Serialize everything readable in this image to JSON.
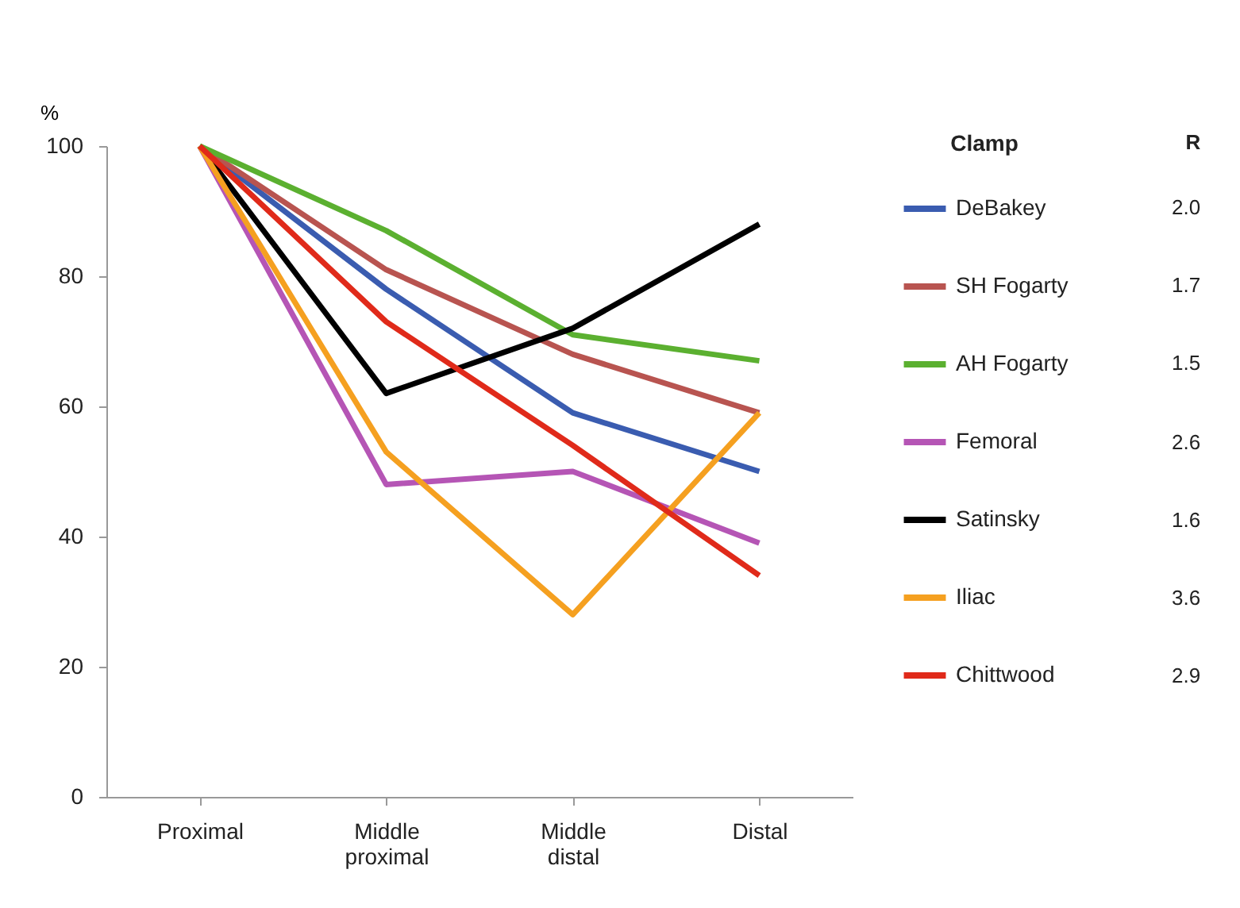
{
  "chart_data": {
    "type": "line",
    "ylabel": "%",
    "legend_title": "Clamp",
    "legend": "right",
    "categories": [
      "Proximal",
      "Middle proximal",
      "Middle distal",
      "Distal"
    ],
    "ylim": [
      0,
      100
    ],
    "yticks": [
      0,
      20,
      40,
      60,
      80,
      100
    ],
    "grid": false,
    "series": [
      {
        "name": "DeBakey",
        "color": "#3a5cb0",
        "values": [
          100,
          78,
          59,
          50
        ]
      },
      {
        "name": "SH Fogarty",
        "color": "#b85450",
        "values": [
          100,
          81,
          68,
          59
        ]
      },
      {
        "name": "AH Fogarty",
        "color": "#5bb030",
        "values": [
          100,
          87,
          71,
          67
        ]
      },
      {
        "name": "Femoral",
        "color": "#b555b5",
        "values": [
          100,
          48,
          50,
          39
        ]
      },
      {
        "name": "Satinsky",
        "color": "#000000",
        "values": [
          100,
          62,
          72,
          88
        ]
      },
      {
        "name": "Iliac",
        "color": "#f5a020",
        "values": [
          100,
          53,
          28,
          59
        ]
      },
      {
        "name": "Chittwood",
        "color": "#e02a1a",
        "values": [
          100,
          73,
          54,
          34
        ]
      }
    ],
    "annotations": [
      "R",
      "2.0",
      "1.7",
      "1.5",
      "2.6",
      "1.6",
      "3.6",
      "2.9"
    ]
  }
}
